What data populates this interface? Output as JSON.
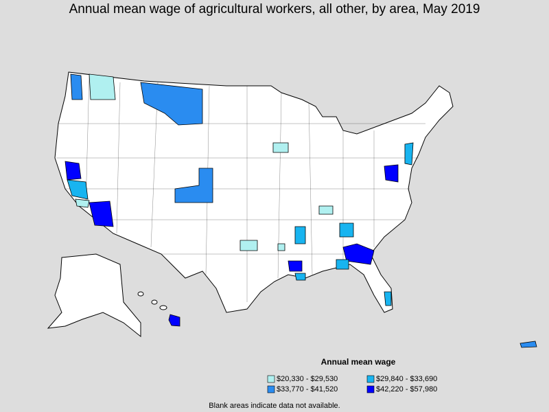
{
  "title": "Annual mean wage of agricultural workers, all other, by area, May 2019",
  "legend": {
    "title": "Annual mean wage",
    "items": [
      {
        "label": "$20,330 - $29,530",
        "color": "#b0f0f0"
      },
      {
        "label": "$29,840 - $33,690",
        "color": "#18b4f0"
      },
      {
        "label": "$33,770 - $41,520",
        "color": "#2a8cf0"
      },
      {
        "label": "$42,220 - $57,980",
        "color": "#0000ff"
      }
    ]
  },
  "footnote": "Blank areas indicate data not available."
}
